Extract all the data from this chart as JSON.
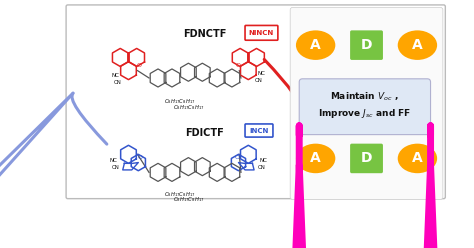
{
  "bg_color": "#ffffff",
  "border_color": "#bbbbbb",
  "orange_color": "#FFA500",
  "green_color": "#77C442",
  "magenta_color": "#FF00BB",
  "red_color": "#E02020",
  "blue_color": "#3355CC",
  "gray_struct": "#555555",
  "text_dark": "#111111",
  "box_text_bg": "#dce6f5",
  "box_border": "#aaaacc",
  "fdnctf_label": "FDNCTF",
  "fdictf_label": "FDICTF",
  "nincn_label": "NINCN",
  "incn_label": "INCN",
  "maintain_line1": "Maintain $\\mathit{V}_{oc}$ ,",
  "maintain_line2": "Improve $\\mathit{J}_{sc}$ and FF",
  "ada_A": "A",
  "ada_D": "D"
}
